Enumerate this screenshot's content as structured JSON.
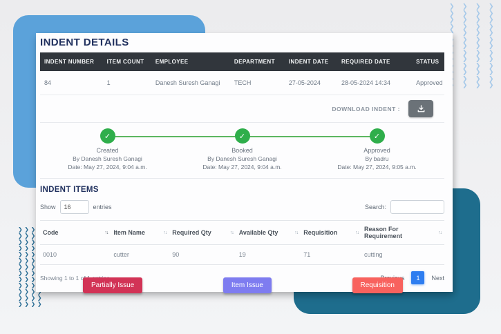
{
  "indent_details": {
    "title": "INDENT DETAILS",
    "columns": [
      "INDENT NUMBER",
      "ITEM COUNT",
      "EMPLOYEE",
      "DEPARTMENT",
      "INDENT DATE",
      "REQUIRED DATE",
      "STATUS"
    ],
    "row": {
      "indent_number": "84",
      "item_count": "1",
      "employee": "Danesh Suresh Ganagi",
      "department": "TECH",
      "indent_date": "27-05-2024",
      "required_date": "28-05-2024 14:34",
      "status": "Approved"
    },
    "download_label": "DOWNLOAD INDENT :"
  },
  "timeline": {
    "steps": [
      {
        "name": "Created",
        "by": "By Danesh Suresh Ganagi",
        "date": "Date: May 27, 2024, 9:04 a.m."
      },
      {
        "name": "Booked",
        "by": "By Danesh Suresh Ganagi",
        "date": "Date: May 27, 2024, 9:04 a.m."
      },
      {
        "name": "Approved",
        "by": "By badru",
        "date": "Date: May 27, 2024, 9:05 a.m."
      }
    ]
  },
  "indent_items": {
    "title": "INDENT ITEMS",
    "show_label": "Show",
    "entries_value": "16",
    "entries_label": "entries",
    "search_label": "Search:",
    "search_value": "",
    "columns": [
      "Code",
      "Item Name",
      "Required Qty",
      "Available Qty",
      "Requisition",
      "Reason For Requirement"
    ],
    "rows": [
      [
        "0010",
        "cutter",
        "90",
        "19",
        "71",
        "cutting"
      ]
    ],
    "info": "Showing 1 to 1 of 1 entries",
    "pagination": {
      "previous": "Previous",
      "page": "1",
      "next": "Next"
    }
  },
  "actions": {
    "partially_issue": "Partially Issue",
    "item_issue": "Item Issue",
    "requisition": "Requisition"
  },
  "decor": {
    "chevron_glyph": "❯",
    "check_glyph": "✓",
    "sort_glyph": "↑↓"
  },
  "colors": {
    "decor_blue": "#5ba2da",
    "decor_teal": "#1e6d8d",
    "table_header_bg": "#31363c",
    "heading_navy": "#20305e",
    "status_green": "#3ecd8d",
    "timeline_green": "#2fae4b",
    "pagination_blue": "#2e7df0",
    "btn_partially_issue": "#d23356",
    "btn_item_issue": "#7e7cf0",
    "btn_requisition": "#f8625e"
  }
}
